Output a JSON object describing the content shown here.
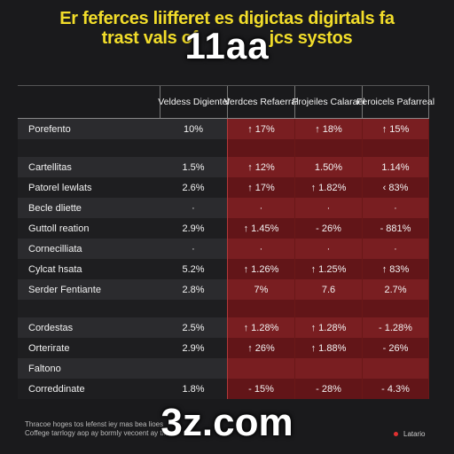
{
  "chart_data": {
    "type": "table",
    "title_lines": [
      "Er feferces liifferet es digictas digirtals fa",
      "trast vals of",
      "jcs systos"
    ],
    "columns": [
      "",
      "Veldess Digientel",
      "Verdces Refaerral",
      "Projeiles Calarael",
      "Feroicels Pafarreal"
    ],
    "rows": [
      {
        "label": "Porefento",
        "values": [
          "10%",
          "↑ 17%",
          "↑ 18%",
          "↑ 15%"
        ]
      },
      {
        "label": "",
        "values": [
          "",
          "",
          "",
          ""
        ]
      },
      {
        "label": "Cartellitas",
        "values": [
          "1.5%",
          "↑ 12%",
          "1.50%",
          "1.14%"
        ]
      },
      {
        "label": "Patorel lewlats",
        "values": [
          "2.6%",
          "↑ 17%",
          "↑ 1.82%",
          "‹ 83%"
        ]
      },
      {
        "label": "Becle dliette",
        "values": [
          "·",
          "·",
          "·",
          "·"
        ]
      },
      {
        "label": "Guttoll reation",
        "values": [
          "2.9%",
          "↑ 1.45%",
          "- 26%",
          "- 881%"
        ]
      },
      {
        "label": "Cornecilliata",
        "values": [
          "·",
          "·",
          "·",
          "·"
        ]
      },
      {
        "label": "Cylcat hsata",
        "values": [
          "5.2%",
          "↑ 1.26%",
          "↑ 1.25%",
          "↑ 83%"
        ]
      },
      {
        "label": "Serder Fentiante",
        "values": [
          "2.8%",
          "7%",
          "7.6",
          "2.7%"
        ]
      },
      {
        "label": "",
        "values": [
          "",
          "",
          "",
          ""
        ]
      },
      {
        "label": "Cordestas",
        "values": [
          "2.5%",
          "↑ 1.28%",
          "↑ 1.28%",
          "- 1.28%"
        ]
      },
      {
        "label": "Orterirate",
        "values": [
          "2.9%",
          "↑ 26%",
          "↑ 1.88%",
          "- 26%"
        ]
      },
      {
        "label": "Faltono",
        "values": [
          "",
          "",
          "",
          ""
        ]
      },
      {
        "label": "Correddinate",
        "values": [
          "1.8%",
          "- 15%",
          "- 28%",
          "- 4.3%"
        ]
      }
    ]
  },
  "overlay": {
    "top": "11aa",
    "bottom": "3z.com"
  },
  "footer": {
    "line1": "Thracoe hoges tos lefenst iey mas bea lioes",
    "line2": "Coffege tarrlogy aop ay bormly vecoent ay tilus",
    "mark": "Latario"
  },
  "colors": {
    "title": "#f2dd2a",
    "highlight": "#a8161a",
    "background": "#1a1a1c"
  }
}
